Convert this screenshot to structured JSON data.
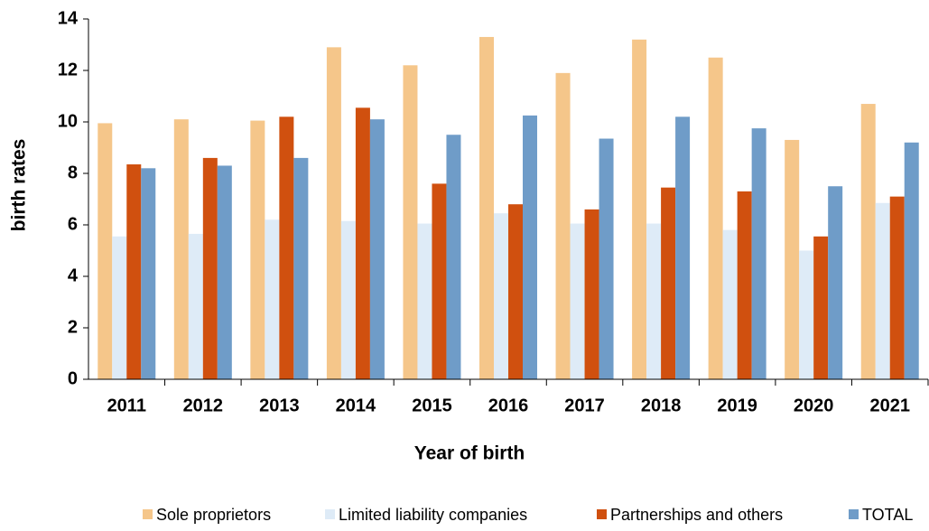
{
  "chart_data": {
    "type": "bar",
    "x_label": "Year of birth",
    "y_label": "birth rates",
    "categories": [
      "2011",
      "2012",
      "2013",
      "2014",
      "2015",
      "2016",
      "2017",
      "2018",
      "2019",
      "2020",
      "2021"
    ],
    "series": [
      {
        "name": "Sole proprietors",
        "color": "#f5c68a",
        "values": [
          9.95,
          10.1,
          10.05,
          12.9,
          12.2,
          13.3,
          11.9,
          13.2,
          12.5,
          9.3,
          10.7
        ]
      },
      {
        "name": "Limited liability companies",
        "color": "#deebf7",
        "values": [
          5.55,
          5.65,
          6.2,
          6.15,
          6.05,
          6.45,
          6.05,
          6.05,
          5.8,
          5.0,
          6.85
        ]
      },
      {
        "name": "Partnerships and others",
        "color": "#d0500f",
        "values": [
          8.35,
          8.6,
          10.2,
          10.55,
          7.6,
          6.8,
          6.6,
          7.45,
          7.3,
          5.55,
          7.1
        ]
      },
      {
        "name": "TOTAL",
        "color": "#6f9cc8",
        "values": [
          8.2,
          8.3,
          8.6,
          10.1,
          9.5,
          10.25,
          9.35,
          10.2,
          9.75,
          7.5,
          9.2
        ]
      }
    ],
    "ylim": [
      0,
      14
    ],
    "yticks": [
      0,
      2,
      4,
      6,
      8,
      10,
      12,
      14
    ],
    "grid": false,
    "legend": "bottom"
  }
}
